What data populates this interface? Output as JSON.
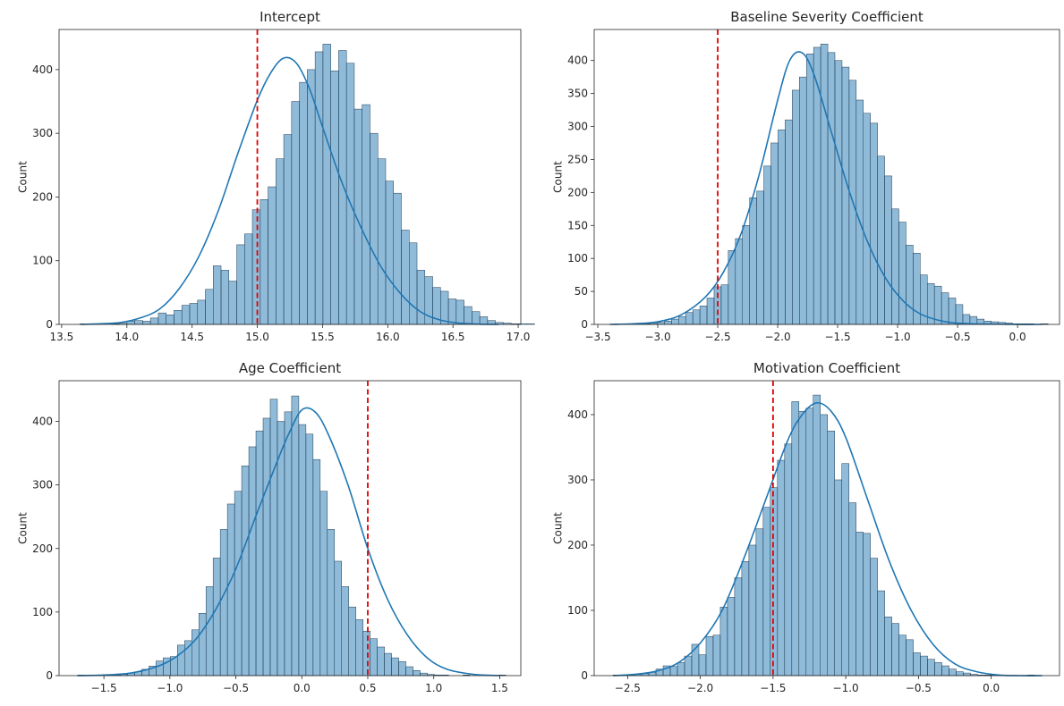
{
  "chart_data": [
    {
      "type": "bar",
      "title": "Intercept",
      "xlabel": "",
      "ylabel": "Count",
      "xlim": [
        13.48,
        17.02
      ],
      "ylim": [
        0,
        463
      ],
      "xticks": [
        13.5,
        14.0,
        14.5,
        15.0,
        15.5,
        16.0,
        16.5,
        17.0
      ],
      "xtick_labels": [
        "13.5",
        "14.0",
        "14.5",
        "15.0",
        "15.5",
        "16.0",
        "16.5",
        "17.0"
      ],
      "yticks": [
        0,
        100,
        200,
        300,
        400
      ],
      "ytick_labels": [
        "0",
        "100",
        "200",
        "300",
        "400"
      ],
      "bin_start": 13.64,
      "bin_width": 0.0601,
      "counts": [
        1,
        0,
        0,
        0,
        1,
        2,
        5,
        6,
        5,
        10,
        18,
        15,
        22,
        30,
        33,
        38,
        55,
        92,
        85,
        68,
        125,
        142,
        180,
        196,
        216,
        260,
        298,
        350,
        380,
        400,
        428,
        440,
        398,
        430,
        410,
        338,
        345,
        300,
        260,
        225,
        206,
        148,
        128,
        85,
        75,
        58,
        52,
        40,
        38,
        28,
        20,
        12,
        6,
        3,
        2,
        1,
        1,
        1
      ],
      "kde": {
        "x": [
          13.65,
          13.8,
          13.95,
          14.1,
          14.25,
          14.4,
          14.55,
          14.7,
          14.85,
          15.0,
          15.1,
          15.2,
          15.3,
          15.4,
          15.5,
          15.65,
          15.8,
          15.95,
          16.1,
          16.25,
          16.4,
          16.55,
          16.7,
          16.85
        ],
        "y": [
          0,
          1,
          3,
          10,
          24,
          56,
          106,
          178,
          268,
          352,
          394,
          418,
          410,
          370,
          310,
          222,
          150,
          90,
          48,
          20,
          7,
          2,
          0.5,
          0
        ]
      },
      "ref_line_x": 15.0
    },
    {
      "type": "bar",
      "title": "Baseline Severity Coefficient",
      "xlabel": "",
      "ylabel": "Count",
      "xlim": [
        -3.53,
        0.35
      ],
      "ylim": [
        0,
        447
      ],
      "xticks": [
        -3.5,
        -3.0,
        -2.5,
        -2.0,
        -1.5,
        -1.0,
        -0.5,
        0.0
      ],
      "xtick_labels": [
        "−3.5",
        "−3.0",
        "−2.5",
        "−2.0",
        "−1.5",
        "−1.0",
        "−0.5",
        "0.0"
      ],
      "yticks": [
        0,
        50,
        100,
        150,
        200,
        250,
        300,
        350,
        400
      ],
      "ytick_labels": [
        "0",
        "50",
        "100",
        "150",
        "200",
        "250",
        "300",
        "350",
        "400"
      ],
      "bin_start": -3.36,
      "bin_width": 0.05926,
      "counts": [
        1,
        0,
        1,
        1,
        1,
        2,
        3,
        5,
        8,
        12,
        18,
        22,
        28,
        40,
        57,
        60,
        112,
        130,
        150,
        192,
        202,
        240,
        275,
        295,
        310,
        355,
        375,
        410,
        420,
        425,
        412,
        400,
        390,
        370,
        340,
        320,
        305,
        255,
        225,
        175,
        155,
        120,
        108,
        75,
        62,
        58,
        48,
        40,
        30,
        15,
        12,
        8,
        5,
        4,
        3,
        2,
        1,
        1,
        1,
        0,
        1
      ],
      "kde": {
        "x": [
          -3.4,
          -3.2,
          -3.0,
          -2.8,
          -2.6,
          -2.45,
          -2.3,
          -2.15,
          -2.0,
          -1.9,
          -1.8,
          -1.7,
          -1.55,
          -1.4,
          -1.25,
          -1.1,
          -0.95,
          -0.8,
          -0.6,
          -0.4,
          -0.2,
          0.0,
          0.2
        ],
        "y": [
          0,
          1,
          4,
          15,
          42,
          80,
          140,
          230,
          340,
          400,
          412,
          380,
          290,
          200,
          125,
          70,
          35,
          15,
          4,
          1,
          0.5,
          0,
          0
        ]
      },
      "ref_line_x": -2.5
    },
    {
      "type": "bar",
      "title": "Age Coefficient",
      "xlabel": "",
      "ylabel": "Count",
      "xlim": [
        -1.84,
        1.66
      ],
      "ylim": [
        0,
        464
      ],
      "xticks": [
        -1.5,
        -1.0,
        -0.5,
        0.0,
        0.5,
        1.0,
        1.5
      ],
      "xtick_labels": [
        "−1.5",
        "−1.0",
        "−0.5",
        "0.0",
        "0.5",
        "1.0",
        "1.5"
      ],
      "yticks": [
        0,
        100,
        200,
        300,
        400
      ],
      "ytick_labels": [
        "0",
        "100",
        "200",
        "300",
        "400"
      ],
      "bin_start": -1.7,
      "bin_width": 0.0541,
      "counts": [
        1,
        0,
        0,
        0,
        1,
        1,
        2,
        4,
        6,
        10,
        15,
        23,
        28,
        30,
        48,
        55,
        72,
        98,
        140,
        185,
        230,
        270,
        290,
        330,
        360,
        385,
        405,
        435,
        400,
        415,
        440,
        395,
        380,
        340,
        290,
        230,
        180,
        140,
        108,
        88,
        70,
        58,
        45,
        35,
        28,
        22,
        14,
        8,
        4,
        2,
        1,
        1,
        0,
        0,
        1,
        0,
        0,
        0,
        0,
        1
      ],
      "kde": {
        "x": [
          -1.7,
          -1.5,
          -1.3,
          -1.1,
          -0.95,
          -0.8,
          -0.65,
          -0.5,
          -0.35,
          -0.2,
          -0.1,
          0.0,
          0.1,
          0.2,
          0.35,
          0.5,
          0.65,
          0.8,
          0.95,
          1.1,
          1.3,
          1.5
        ],
        "y": [
          0,
          1,
          4,
          14,
          30,
          58,
          105,
          168,
          250,
          330,
          380,
          418,
          415,
          380,
          300,
          200,
          120,
          64,
          28,
          10,
          2,
          0
        ]
      },
      "ref_line_x": 0.5
    },
    {
      "type": "bar",
      "title": "Motivation Coefficient",
      "xlabel": "",
      "ylabel": "Count",
      "xlim": [
        -2.73,
        0.47
      ],
      "ylim": [
        0,
        452
      ],
      "xticks": [
        -2.5,
        -2.0,
        -1.5,
        -1.0,
        -0.5,
        0.0
      ],
      "xtick_labels": [
        "−2.5",
        "−2.0",
        "−1.5",
        "−1.0",
        "−0.5",
        "0.0"
      ],
      "yticks": [
        0,
        100,
        200,
        300,
        400
      ],
      "ytick_labels": [
        "0",
        "100",
        "200",
        "300",
        "400"
      ],
      "bin_start": -2.6,
      "bin_width": 0.04915,
      "counts": [
        1,
        1,
        1,
        2,
        3,
        5,
        10,
        15,
        14,
        20,
        30,
        48,
        32,
        60,
        62,
        105,
        120,
        150,
        175,
        200,
        225,
        258,
        288,
        330,
        355,
        420,
        405,
        410,
        430,
        400,
        375,
        300,
        325,
        265,
        220,
        218,
        180,
        130,
        90,
        80,
        62,
        55,
        35,
        30,
        25,
        20,
        15,
        10,
        6,
        4,
        2,
        1,
        1,
        1,
        1,
        0,
        0,
        0,
        1
      ],
      "kde": {
        "x": [
          -2.6,
          -2.45,
          -2.3,
          -2.15,
          -2.0,
          -1.85,
          -1.7,
          -1.55,
          -1.4,
          -1.3,
          -1.2,
          -1.1,
          -1.0,
          -0.85,
          -0.7,
          -0.55,
          -0.4,
          -0.25,
          -0.1,
          0.05,
          0.2,
          0.35
        ],
        "y": [
          0,
          2,
          7,
          20,
          50,
          100,
          180,
          270,
          360,
          400,
          418,
          405,
          365,
          270,
          175,
          100,
          48,
          18,
          6,
          1,
          0,
          0
        ]
      },
      "ref_line_x": -1.5
    }
  ]
}
